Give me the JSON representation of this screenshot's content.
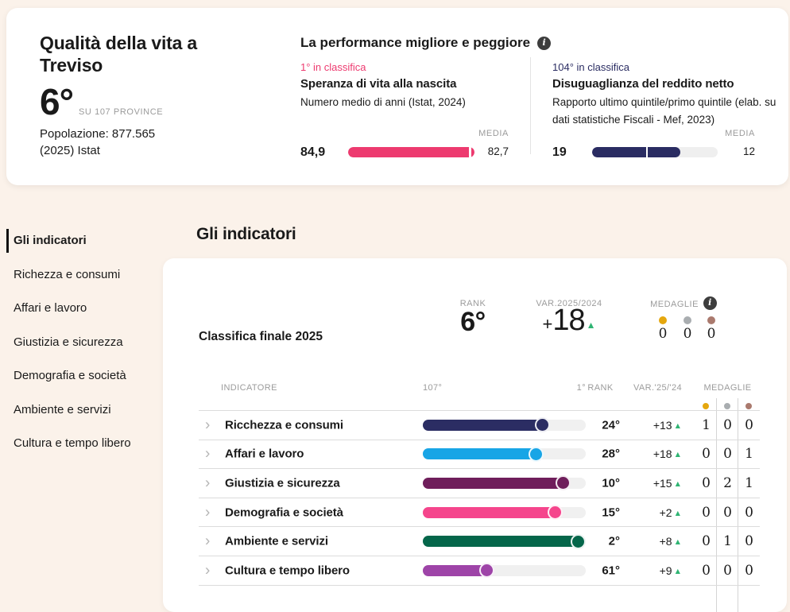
{
  "colors": {
    "gold": "#e5a70e",
    "silver": "#a9adb0",
    "bronze": "#aa7a6e",
    "positive_green": "#2fb473",
    "accent_pink": "#ed3a6f",
    "accent_navy": "#2a2c62"
  },
  "icons": {
    "chevron_right": "›",
    "info": "i",
    "triangle_up": "▲"
  },
  "header_card": {
    "title": "Qualità della vita a Treviso",
    "rank_value": "6°",
    "rank_context": "SU 107 PROVINCE",
    "population": "Popolazione: 877.565 (2025) Istat",
    "performance": {
      "title": "La performance migliore e peggiore",
      "media_label": "MEDIA",
      "best": {
        "rank_label": "1° in classifica",
        "name": "Speranza di vita alla nascita",
        "desc": "Numero medio di anni (Istat, 2024)",
        "value": "84,9",
        "media_value": "82,7",
        "fill_pct": 100,
        "media_pct": 97,
        "color": "#ed3a6f"
      },
      "worst": {
        "rank_label": "104° in classifica",
        "name": "Disuguaglianza del reddito netto",
        "desc": "Rapporto ultimo quintile/primo quintile (elab. su dati statistiche Fiscali - Mef, 2023)",
        "value": "19",
        "media_value": "12",
        "fill_pct": 70,
        "media_pct": 44,
        "color": "#2a2c62"
      }
    }
  },
  "sidebar": {
    "items": [
      {
        "label": "Gli indicatori",
        "active": true
      },
      {
        "label": "Richezza e consumi",
        "active": false
      },
      {
        "label": "Affari e lavoro",
        "active": false
      },
      {
        "label": "Giustizia e sicurezza",
        "active": false
      },
      {
        "label": "Demografia e società",
        "active": false
      },
      {
        "label": "Ambiente e servizi",
        "active": false
      },
      {
        "label": "Cultura e tempo libero",
        "active": false
      }
    ]
  },
  "main": {
    "heading": "Gli indicatori",
    "summary": {
      "label": "Classifica finale 2025",
      "rank_label": "RANK",
      "rank_value": "6°",
      "var_label": "VAR.2025/2024",
      "var_sign": "+",
      "var_value": "18",
      "medals_label": "MEDAGLIE",
      "medal_counts": [
        "0",
        "0",
        "0"
      ]
    },
    "table": {
      "headers": {
        "indicatore": "INDICATORE",
        "worst": "107°",
        "best": "1°",
        "rank": "RANK",
        "variation": "VAR.'25/'24",
        "medals": "MEDAGLIE"
      },
      "rows": [
        {
          "name": "Ricchezza e consumi",
          "color": "#2b2d63",
          "fill_pct": 74,
          "rank": "24°",
          "variation": "+13",
          "medals": [
            "1",
            "0",
            "0"
          ]
        },
        {
          "name": "Affari e lavoro",
          "color": "#18a5e6",
          "fill_pct": 70,
          "rank": "28°",
          "variation": "+18",
          "medals": [
            "0",
            "0",
            "1"
          ]
        },
        {
          "name": "Giustizia e sicurezza",
          "color": "#6f1e5b",
          "fill_pct": 87,
          "rank": "10°",
          "variation": "+15",
          "medals": [
            "0",
            "2",
            "1"
          ]
        },
        {
          "name": "Demografia e società",
          "color": "#f5458c",
          "fill_pct": 82,
          "rank": "15°",
          "variation": "+2",
          "medals": [
            "0",
            "0",
            "0"
          ]
        },
        {
          "name": "Ambiente e servizi",
          "color": "#05664a",
          "fill_pct": 96,
          "rank": "2°",
          "variation": "+8",
          "medals": [
            "0",
            "1",
            "0"
          ]
        },
        {
          "name": "Cultura e tempo libero",
          "color": "#9e44a8",
          "fill_pct": 40,
          "rank": "61°",
          "variation": "+9",
          "medals": [
            "0",
            "0",
            "0"
          ]
        }
      ]
    }
  }
}
